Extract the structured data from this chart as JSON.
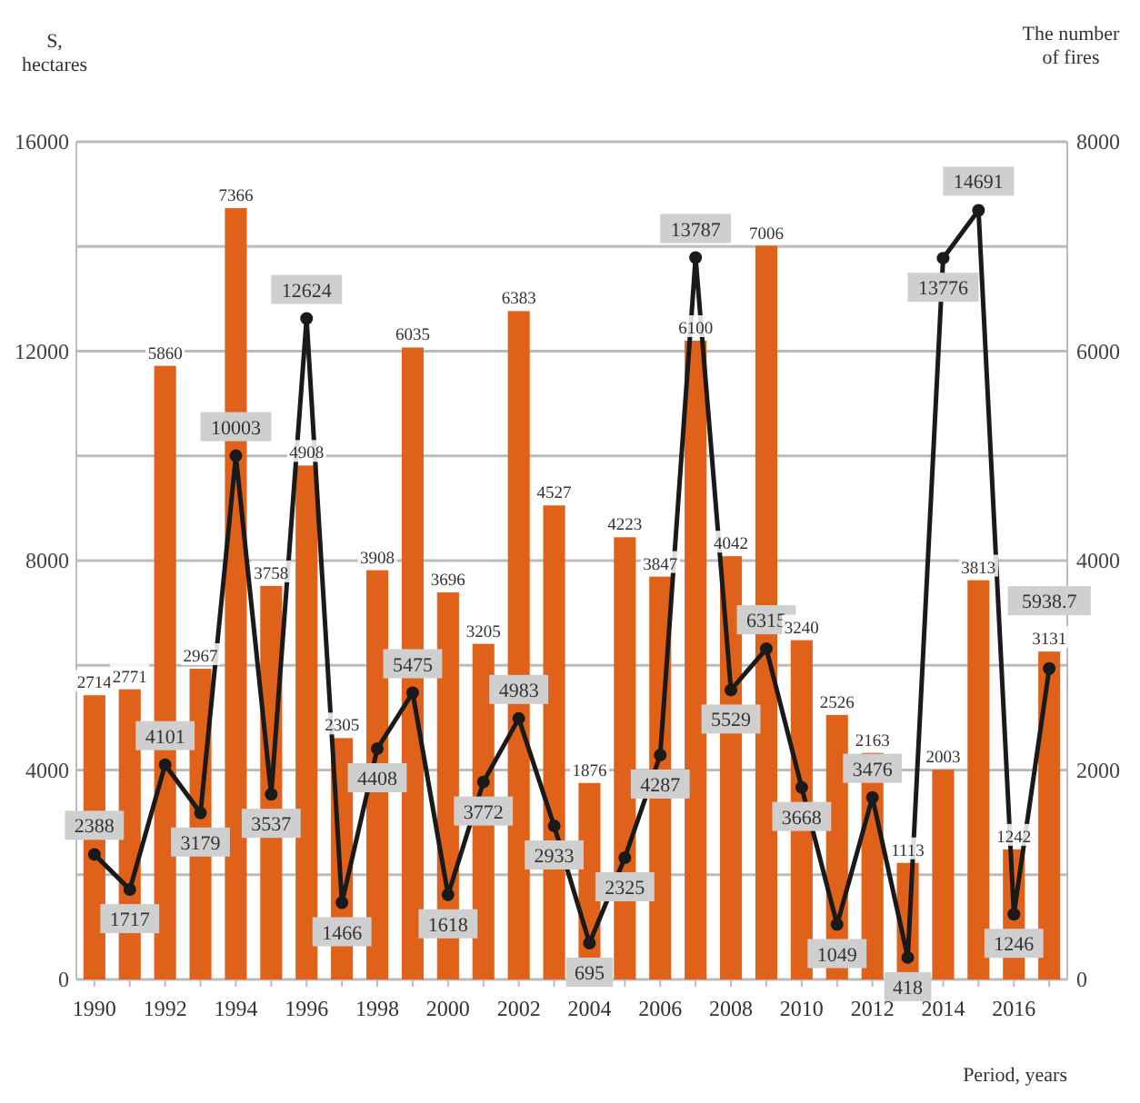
{
  "chart_data": {
    "type": "bar",
    "xlabel": "Period, years",
    "ylabel": "S,\nhectares",
    "y2label": "The number\nof fires",
    "categories": [
      "1990",
      null,
      "1992",
      null,
      "1994",
      null,
      "1996",
      null,
      "1998",
      null,
      "2000",
      null,
      "2002",
      null,
      "2004",
      null,
      "2006",
      null,
      "2008",
      null,
      "2010",
      null,
      "2012",
      null,
      "2014",
      null,
      "2016",
      null
    ],
    "series": [
      {
        "axis": "y2",
        "color": "#e0621a",
        "values": [
          2714,
          2771,
          5860,
          2967,
          7366,
          3758,
          4908,
          2305,
          3908,
          6035,
          3696,
          3205,
          6383,
          4527,
          1876,
          4223,
          3847,
          6100,
          4042,
          7006,
          3240,
          2526,
          2163,
          1113,
          2003,
          3813,
          1242,
          3131
        ]
      },
      {
        "type": "line",
        "axis": "y",
        "color": "#1a1a1a",
        "marker": "circle",
        "values": [
          2388,
          1717,
          4101,
          3179,
          10003,
          3537,
          12624,
          1466,
          4408,
          5475,
          1618,
          3772,
          4983,
          2933,
          695,
          2325,
          4287,
          13787,
          5529,
          6315,
          3668,
          1049,
          3476,
          418,
          13776,
          14691,
          1246,
          5938.7
        ]
      }
    ],
    "ylim": [
      0,
      16000
    ],
    "yticks": [
      0,
      {
        "value": 2000,
        "label": null
      },
      4000,
      {
        "value": 6000,
        "label": null
      },
      8000,
      {
        "value": 10000,
        "label": null
      },
      12000,
      {
        "value": 14000,
        "label": null
      },
      16000
    ],
    "y2lim": [
      0,
      8000
    ],
    "y2ticks": [
      0,
      2000,
      4000,
      6000,
      8000
    ],
    "grid": "y",
    "data_labels": true
  }
}
